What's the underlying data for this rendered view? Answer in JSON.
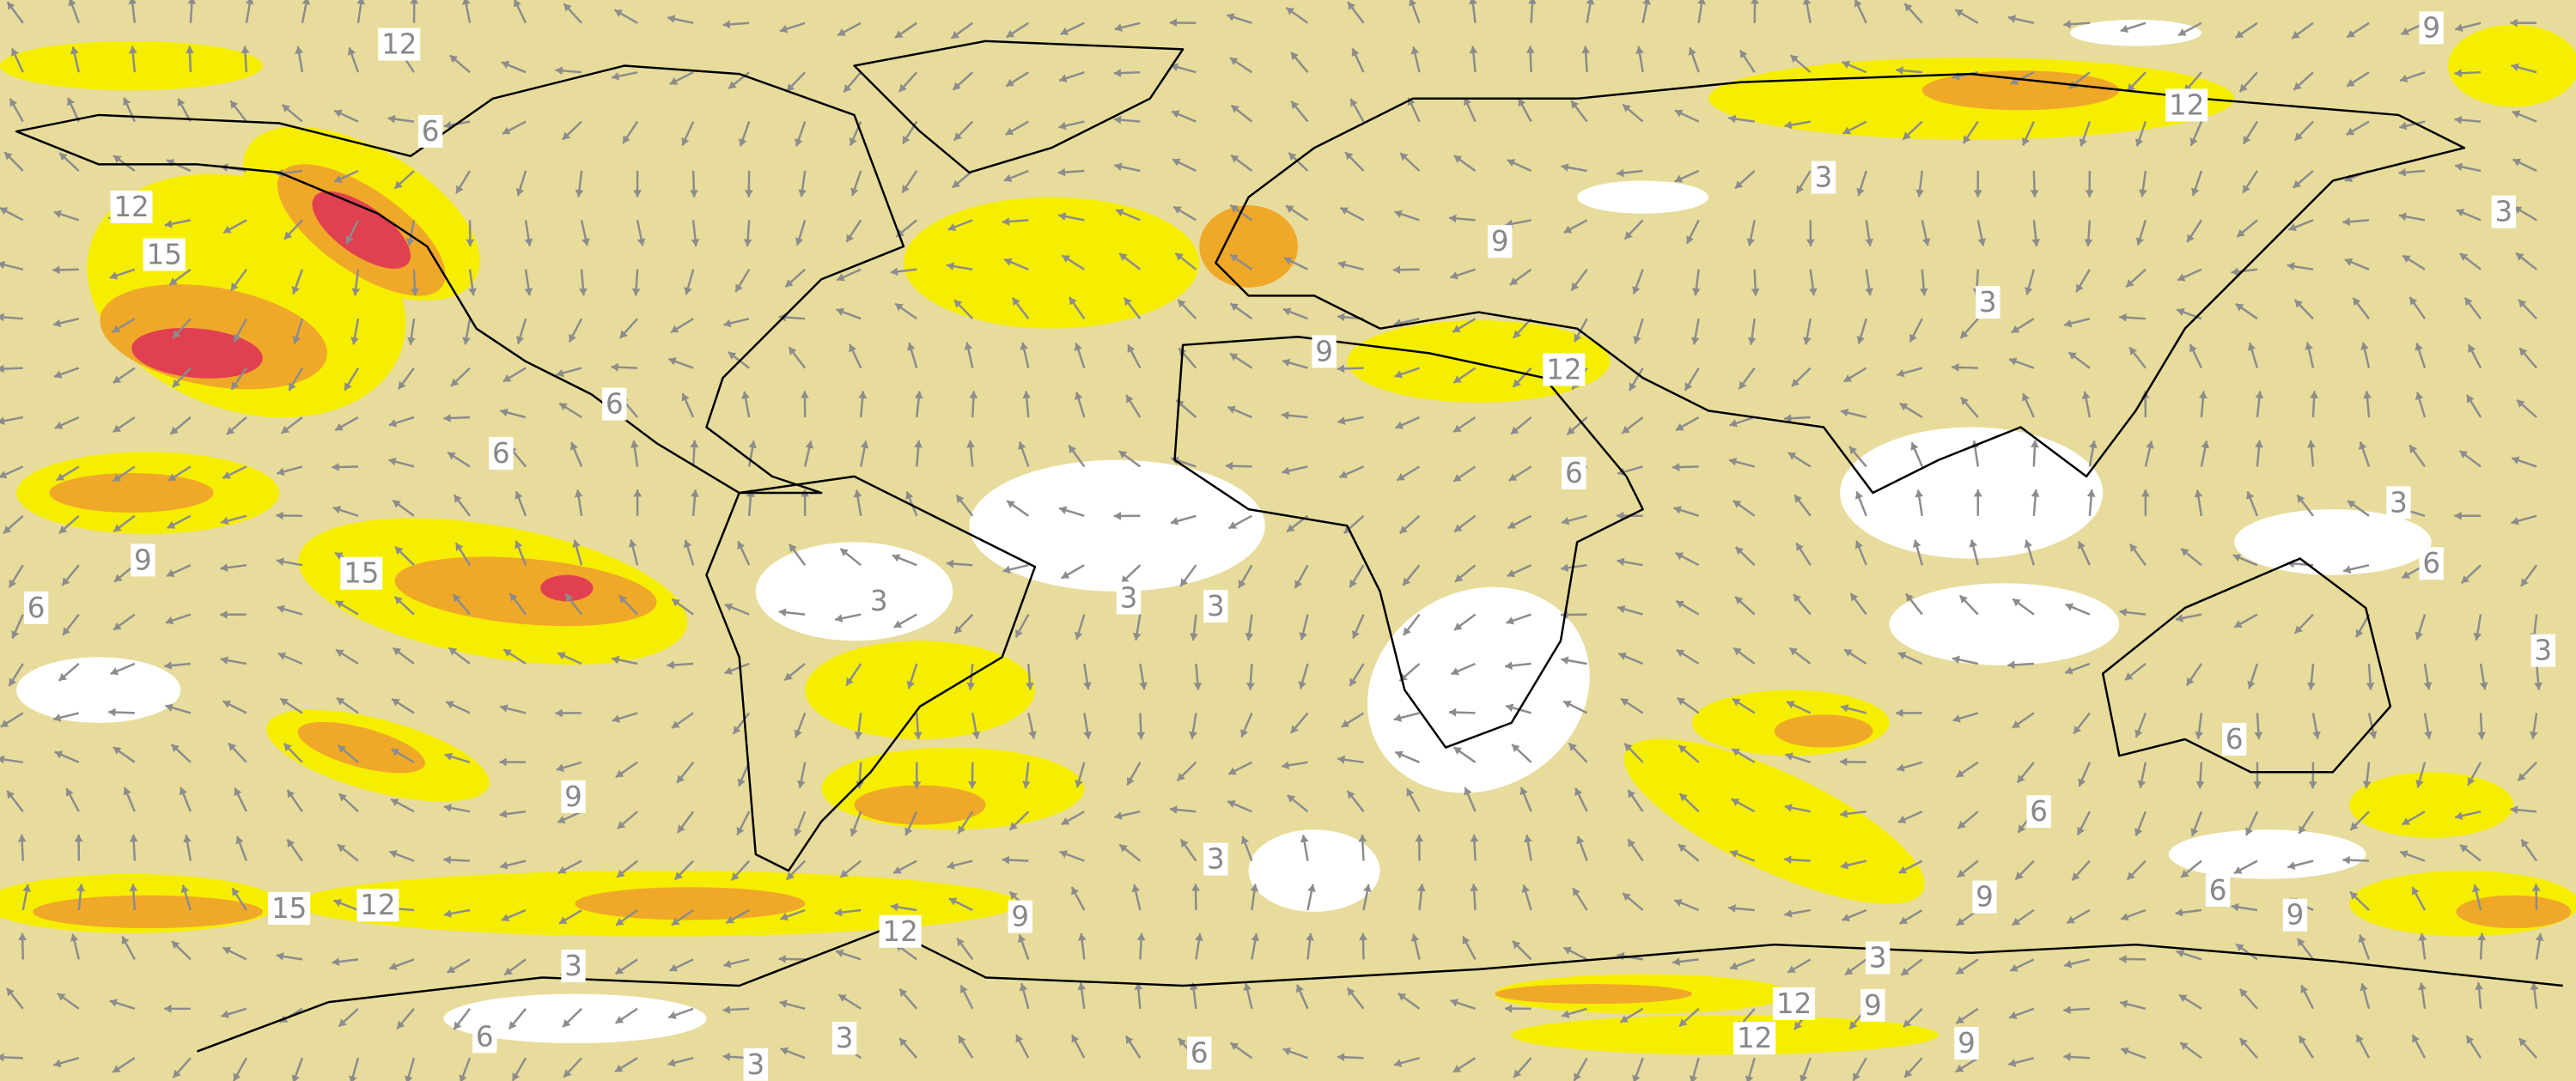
{
  "map": {
    "contour_labels": [
      12,
      9,
      6,
      12,
      15,
      12,
      3,
      3,
      9,
      3,
      9,
      12,
      6,
      6,
      6,
      3,
      9,
      15,
      6,
      6,
      3,
      3,
      3,
      3,
      6,
      9,
      6,
      3,
      15,
      12,
      9,
      6,
      9,
      9,
      12,
      3,
      3,
      12,
      9,
      6,
      3,
      12,
      9,
      6,
      3
    ]
  }
}
